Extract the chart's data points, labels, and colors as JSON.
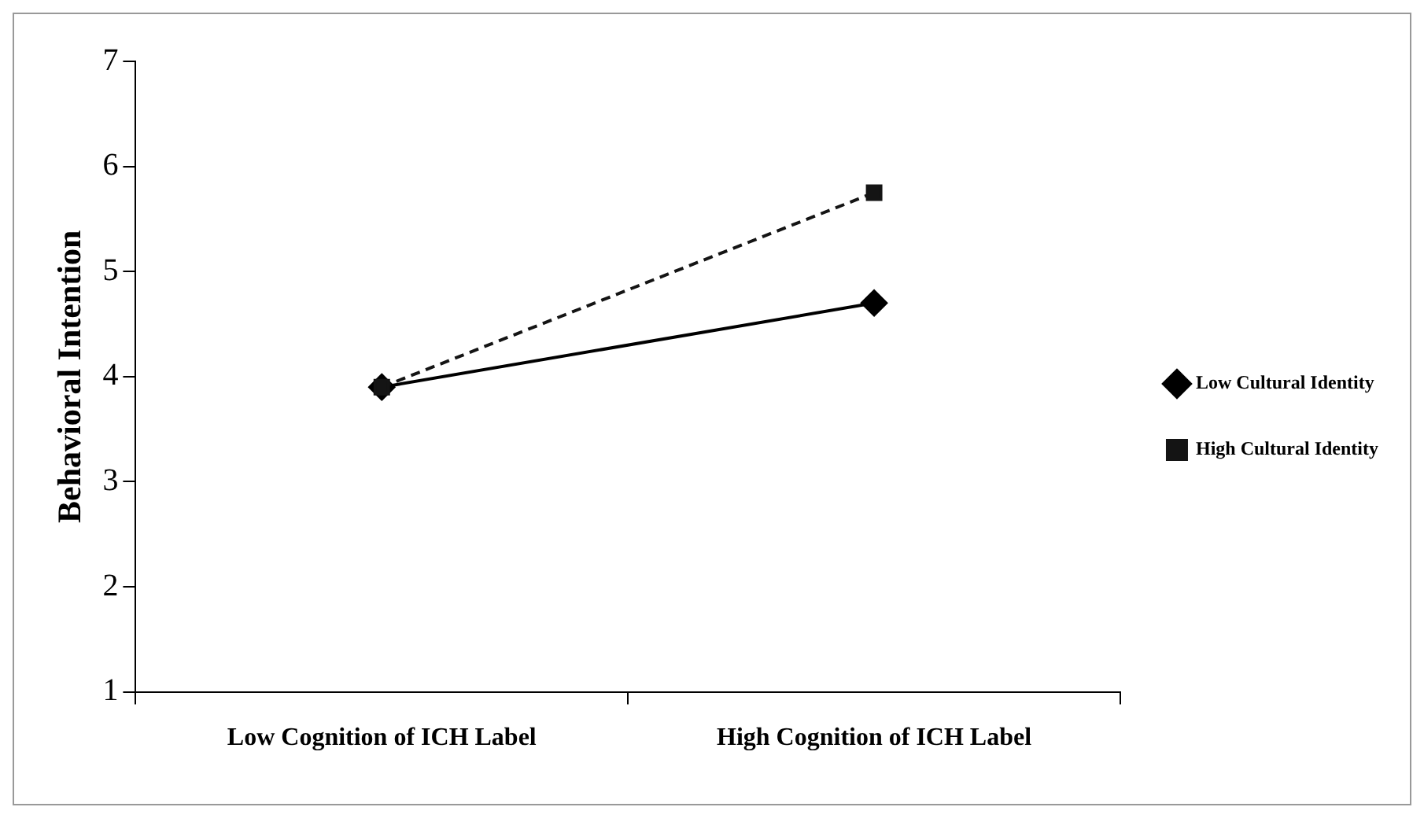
{
  "chart_data": {
    "type": "line",
    "ylabel": "Behavioral Intention",
    "categories": [
      "Low Cognition of ICH Label",
      "High Cognition of ICH Label"
    ],
    "series": [
      {
        "name": "Low Cultural Identity",
        "color": "#000000",
        "values": [
          3.9,
          4.7
        ],
        "marker": "diamond",
        "line_style": "solid"
      },
      {
        "name": "High Cultural Identity",
        "color": "#141414",
        "values": [
          3.9,
          5.75
        ],
        "marker": "square",
        "line_style": "dashed"
      }
    ],
    "ylim": [
      1,
      7
    ],
    "yticks": [
      1,
      2,
      3,
      4,
      5,
      6,
      7
    ],
    "grid": false,
    "legend": "right"
  }
}
